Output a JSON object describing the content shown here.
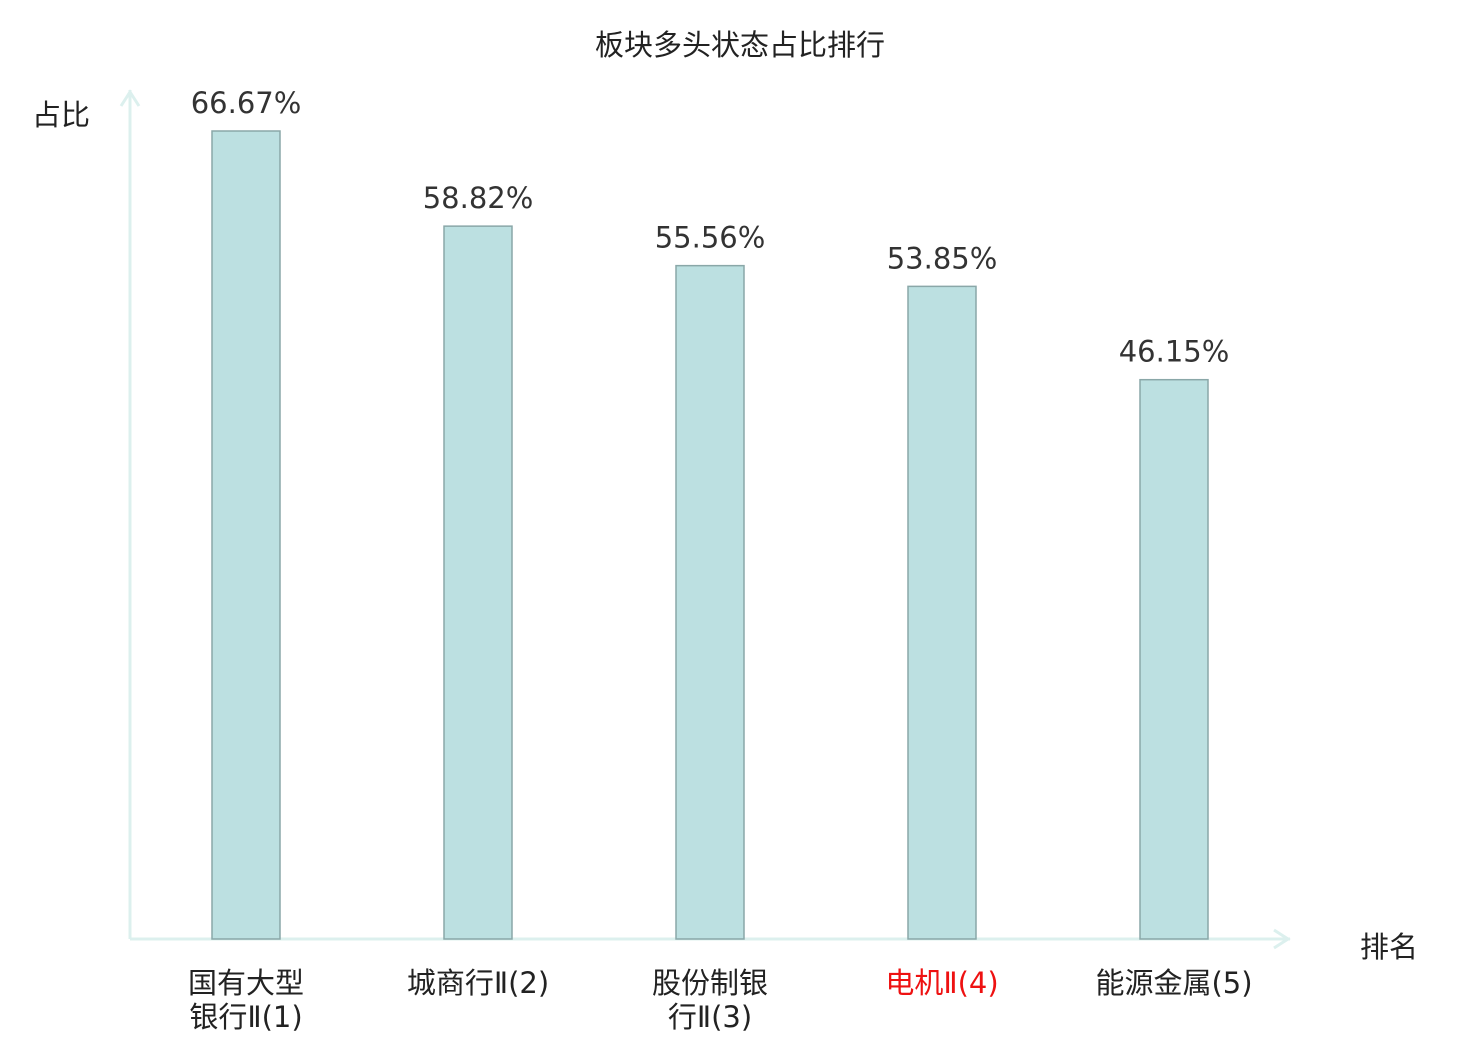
{
  "chart_data": {
    "type": "bar",
    "title": "板块多头状态占比排行",
    "ylabel": "占比",
    "xlabel": "排名",
    "ylim": [
      0,
      70
    ],
    "categories": [
      [
        "国有大型",
        "银行Ⅱ(1)"
      ],
      [
        "城商行Ⅱ(2)"
      ],
      [
        "股份制银",
        "行Ⅱ(3)"
      ],
      [
        "电机Ⅱ(4)"
      ],
      [
        "能源金属(5)"
      ]
    ],
    "values": [
      66.67,
      58.82,
      55.56,
      53.85,
      46.15
    ],
    "value_labels": [
      "66.67%",
      "58.82%",
      "55.56%",
      "53.85%",
      "46.15%"
    ],
    "highlight_index": 3,
    "grid": false
  },
  "colors": {
    "bar_fill": "#bce0e1",
    "bar_stroke": "#8aa7a8",
    "axis": "#dcf0ee",
    "text": "#222222",
    "value_text": "#333333",
    "highlight": "#ee1111"
  }
}
